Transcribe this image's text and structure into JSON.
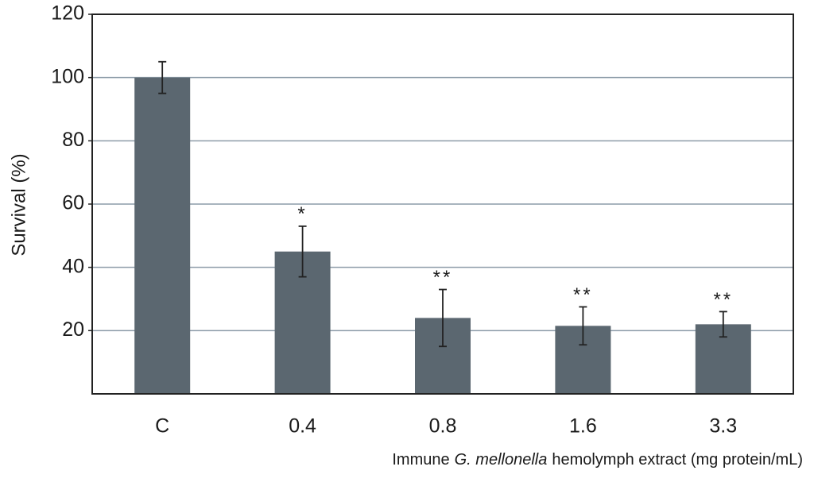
{
  "chart_data": {
    "type": "bar",
    "y_label": "Survival (%)",
    "x_label_parts": [
      "Immune",
      "G. mellonella",
      "hemolymph extract (mg protein/mL)"
    ],
    "categories": [
      "C",
      "0.4",
      "0.8",
      "1.6",
      "3.3"
    ],
    "values": [
      100,
      45,
      24,
      21.5,
      22
    ],
    "errors": [
      5,
      8,
      9,
      6,
      4
    ],
    "annotations": [
      null,
      "*",
      "**",
      "**",
      "**"
    ],
    "color": "#5b6770",
    "ylim": [
      0,
      120
    ],
    "yticks": [
      20,
      40,
      60,
      80,
      100,
      120
    ],
    "grid": true
  }
}
